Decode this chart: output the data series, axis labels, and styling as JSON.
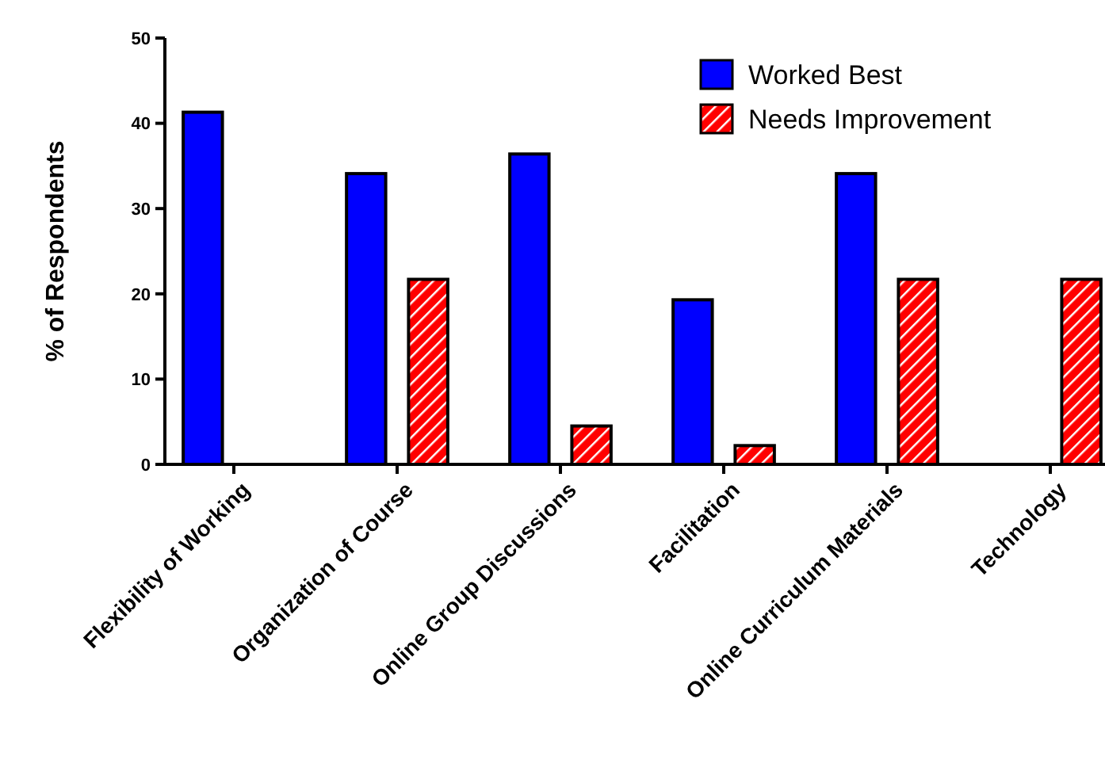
{
  "chart_data": {
    "type": "bar",
    "ylabel": "% of Respondents",
    "categories": [
      "Flexibility of Working",
      "Organization of Course",
      "Online Group Discussions",
      "Facilitation",
      "Online Curriculum Materials",
      "Technology"
    ],
    "series": [
      {
        "name": "Worked Best",
        "color": "#0000ff",
        "values": [
          41.3,
          34.1,
          36.4,
          19.3,
          34.1,
          0
        ]
      },
      {
        "name": "Needs Improvement",
        "color": "#ff0000",
        "values": [
          0,
          21.7,
          4.5,
          2.2,
          21.7,
          21.7
        ]
      }
    ],
    "ylim": [
      0,
      50
    ],
    "yticks": [
      0,
      10,
      20,
      30,
      40,
      50
    ],
    "legend": "top right",
    "grid": false
  }
}
